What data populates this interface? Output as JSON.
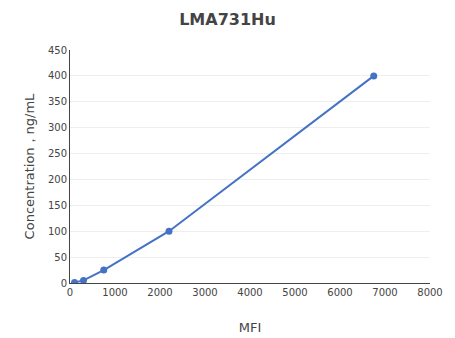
{
  "chart_data": {
    "type": "line",
    "title": "LMA731Hu",
    "xlabel": "MFI",
    "ylabel": "Concentration，ng/mL",
    "x": [
      100,
      300,
      750,
      2200,
      6750
    ],
    "values": [
      1,
      5,
      25,
      100,
      400
    ],
    "color": "#4472C4",
    "marker": "circle",
    "xlim": [
      0,
      8000
    ],
    "ylim": [
      0,
      450
    ],
    "xticks": [
      0,
      1000,
      2000,
      3000,
      4000,
      5000,
      6000,
      7000,
      8000
    ],
    "yticks": [
      0,
      50,
      100,
      150,
      200,
      250,
      300,
      350,
      400,
      450
    ],
    "grid": true
  }
}
